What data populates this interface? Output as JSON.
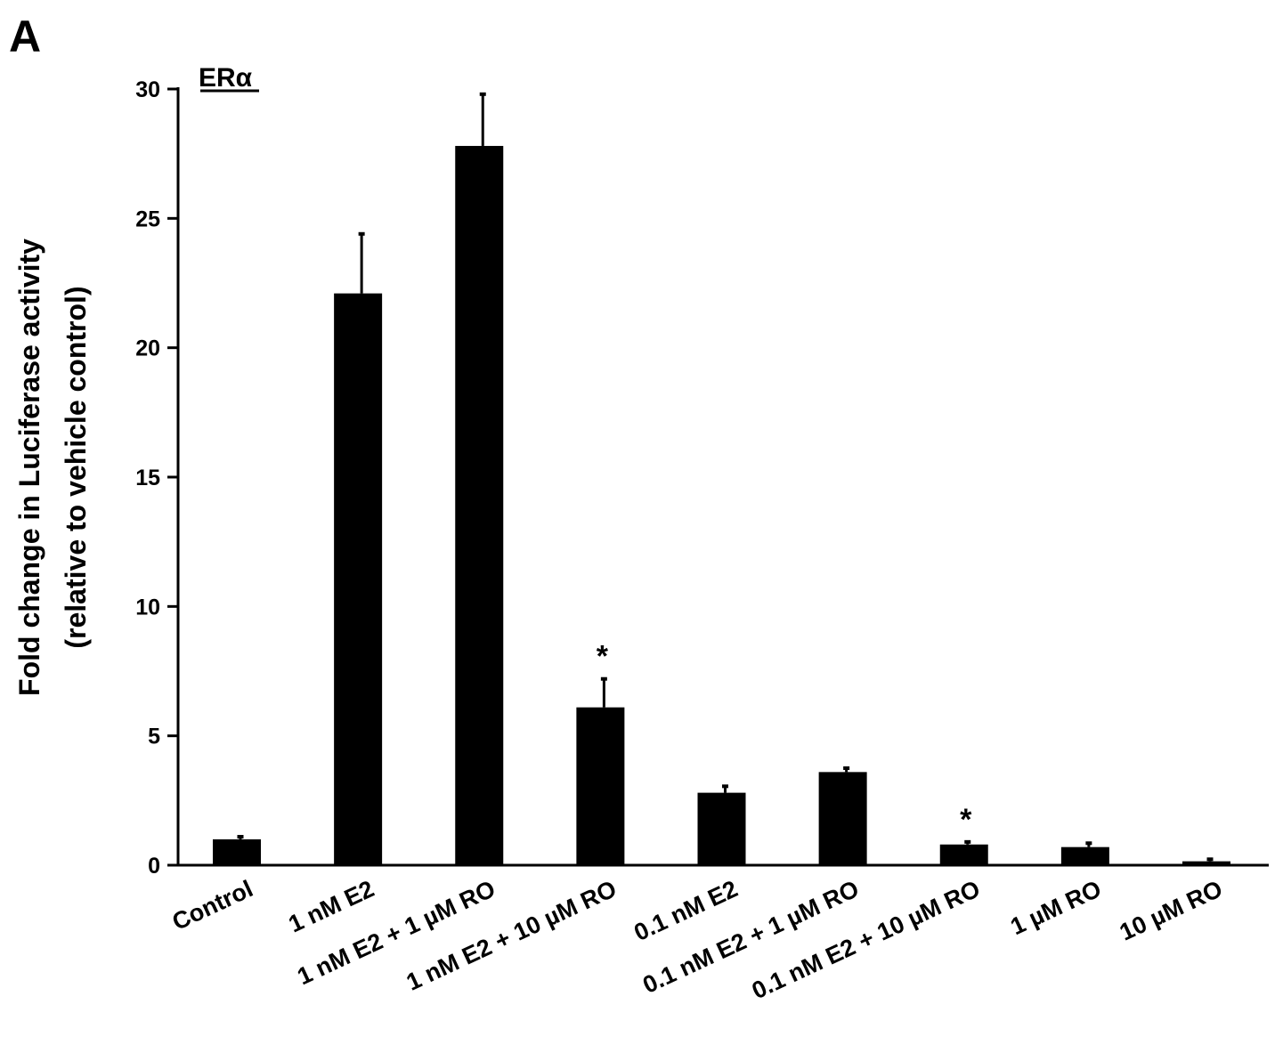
{
  "panel_label": "A",
  "chart_data": {
    "type": "bar",
    "series_label": "ERα",
    "ylabel_line1": "Fold change in Luciferase activity",
    "ylabel_line2": "(relative to vehicle control)",
    "xlabel": "",
    "ylim": [
      0,
      30
    ],
    "yticks": [
      0,
      5,
      10,
      15,
      20,
      25,
      30
    ],
    "categories": [
      "Control",
      "1 nM E2",
      "1 nM E2 + 1 µM RO",
      "1 nM E2 + 10 µM RO",
      "0.1 nM E2",
      "0.1 nM E2 + 1 µM RO",
      "0.1 nM E2 + 10 µM RO",
      "1 µM RO",
      "10 µM RO"
    ],
    "values": [
      1.0,
      22.1,
      27.8,
      6.1,
      2.8,
      3.6,
      0.8,
      0.7,
      0.15
    ],
    "errors": [
      0.1,
      2.3,
      2.0,
      1.1,
      0.25,
      0.15,
      0.1,
      0.15,
      0.08
    ],
    "significance": [
      "",
      "",
      "",
      "*",
      "",
      "",
      "*",
      "",
      ""
    ],
    "bar_color": "#000000",
    "grid": false
  }
}
